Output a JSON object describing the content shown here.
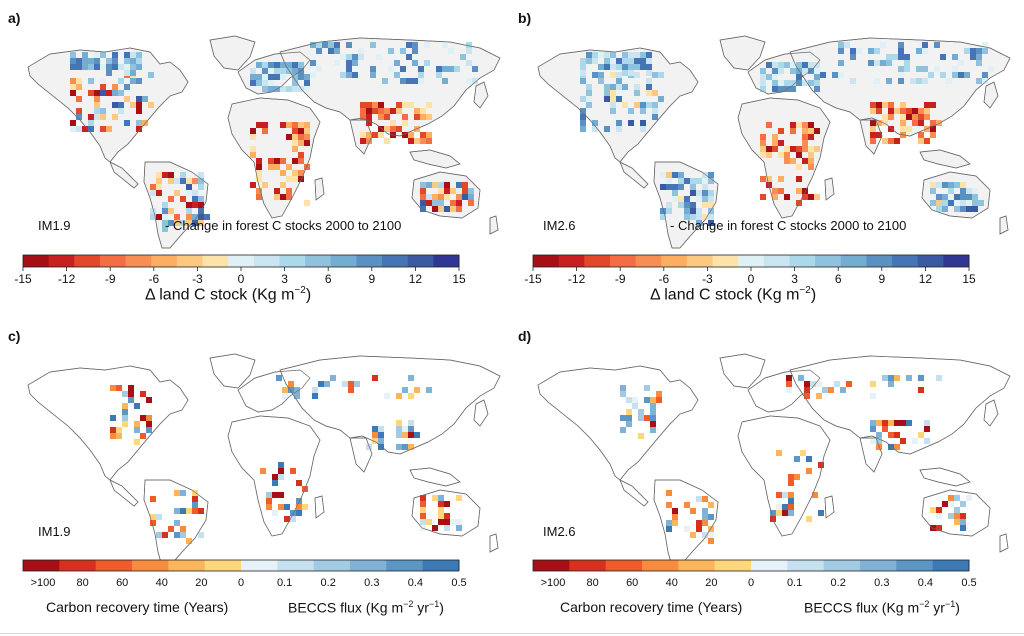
{
  "panels": [
    {
      "letter": "a)",
      "scenario": "IM1.9",
      "caption": "Change in forest C stocks 2000 to 2100",
      "kind": "stock"
    },
    {
      "letter": "b)",
      "scenario": "IM2.6",
      "caption": "Change in forest C stocks 2000 to 2100",
      "kind": "stock"
    },
    {
      "letter": "c)",
      "scenario": "IM1.9",
      "caption": "",
      "kind": "recovery"
    },
    {
      "letter": "d)",
      "scenario": "IM2.6",
      "caption": "",
      "kind": "recovery"
    }
  ],
  "stock_legend": {
    "title": "Δ land C stock (Kg m",
    "title_sup": "−2",
    "title_end": ")",
    "ticks": [
      "-15",
      "-12",
      "-9",
      "-6",
      "-3",
      "0",
      "3",
      "6",
      "9",
      "12",
      "15"
    ],
    "colors": [
      "#a50f15",
      "#c8201e",
      "#e2482a",
      "#f46d43",
      "#f98e52",
      "#fdae61",
      "#fdc880",
      "#fee3a8",
      "#e0f1f6",
      "#cbe5f0",
      "#abd9e9",
      "#8fc3dd",
      "#74add1",
      "#5b90c3",
      "#4575b4",
      "#3a5aa3",
      "#313695"
    ]
  },
  "recovery_legend": {
    "ticks": [
      ">100",
      "80",
      "60",
      "40",
      "20",
      "0",
      "0.1",
      "0.2",
      "0.3",
      "0.4",
      "0.5"
    ],
    "colors_warm": [
      "#a50f15",
      "#d7301f",
      "#ef5b2b",
      "#f98c3c",
      "#fdb55a",
      "#fed77a"
    ],
    "colors_cool": [
      "#e6f2f8",
      "#c6e0ef",
      "#a2cbe3",
      "#7fb2d6",
      "#5b96c5",
      "#3c7ab5"
    ],
    "left_title": "Carbon recovery time (Years)",
    "right_title": "BECCS flux (Kg m",
    "right_sup": "−2",
    "right_mid": " yr",
    "right_sup2": "−1",
    "right_end": ")"
  }
}
